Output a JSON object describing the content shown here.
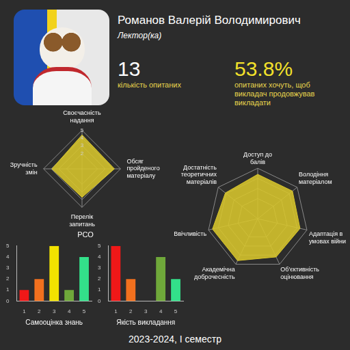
{
  "header": {
    "name": "Романов Валерій Володимирович",
    "role": "Лектор(ка)",
    "respondents": 13,
    "respondents_label": "кількість опитаних",
    "continue_share": "53.8%",
    "continue_label": "опитаних хочуть, щоб викладач продовжував викладати"
  },
  "chart_data": [
    {
      "type": "radar",
      "title": "РСО",
      "categories": [
        "Своєчасність надання",
        "Обсяг пройденого матеріалу",
        "Перелік запитань",
        "Зручність змін"
      ],
      "values": [
        4.4,
        4.2,
        3.7,
        3.9
      ],
      "color": "#d8c62c",
      "rlim": [
        0,
        5
      ],
      "rticks": [
        1,
        2,
        3,
        4,
        5
      ],
      "grid": true
    },
    {
      "type": "radar",
      "categories": [
        "Доступ до балів",
        "Володіння матеріалом",
        "Адаптація в умовах війни",
        "Об'єктивність оцінювання",
        "Академічна доброчесність",
        "Ввічливість",
        "Достатність теоретичних матеріалів"
      ],
      "values": [
        4.4,
        4.4,
        4.3,
        4.2,
        4.6,
        4.6,
        4.1
      ],
      "color": "#d8c62c",
      "rlim": [
        0,
        5
      ],
      "rticks": [
        1,
        2,
        3,
        4,
        5
      ],
      "grid": true,
      "tick_labels": false
    },
    {
      "type": "bar",
      "x_label": "Самооцінка знань",
      "categories": [
        "1",
        "2",
        "3",
        "4",
        "5"
      ],
      "values": [
        1,
        2,
        5,
        1,
        4
      ],
      "colors": [
        "#f01818",
        "#f2701e",
        "#f2e200",
        "#6fa83a",
        "#33e08a"
      ],
      "ylim": [
        0,
        5
      ],
      "yticks": [
        0,
        1,
        2,
        3,
        4,
        5
      ],
      "grid": false
    },
    {
      "type": "bar",
      "x_label": "Якість викладання",
      "categories": [
        "1",
        "2",
        "3",
        "4",
        "5"
      ],
      "values": [
        5,
        2,
        0,
        4,
        2
      ],
      "colors": [
        "#f01818",
        "#f2701e",
        "#f2e200",
        "#6fa83a",
        "#33e08a"
      ],
      "ylim": [
        0,
        5
      ],
      "yticks": [
        0,
        1,
        2,
        3,
        4,
        5
      ],
      "grid": false
    }
  ],
  "footer": "2023-2024, I семестр"
}
